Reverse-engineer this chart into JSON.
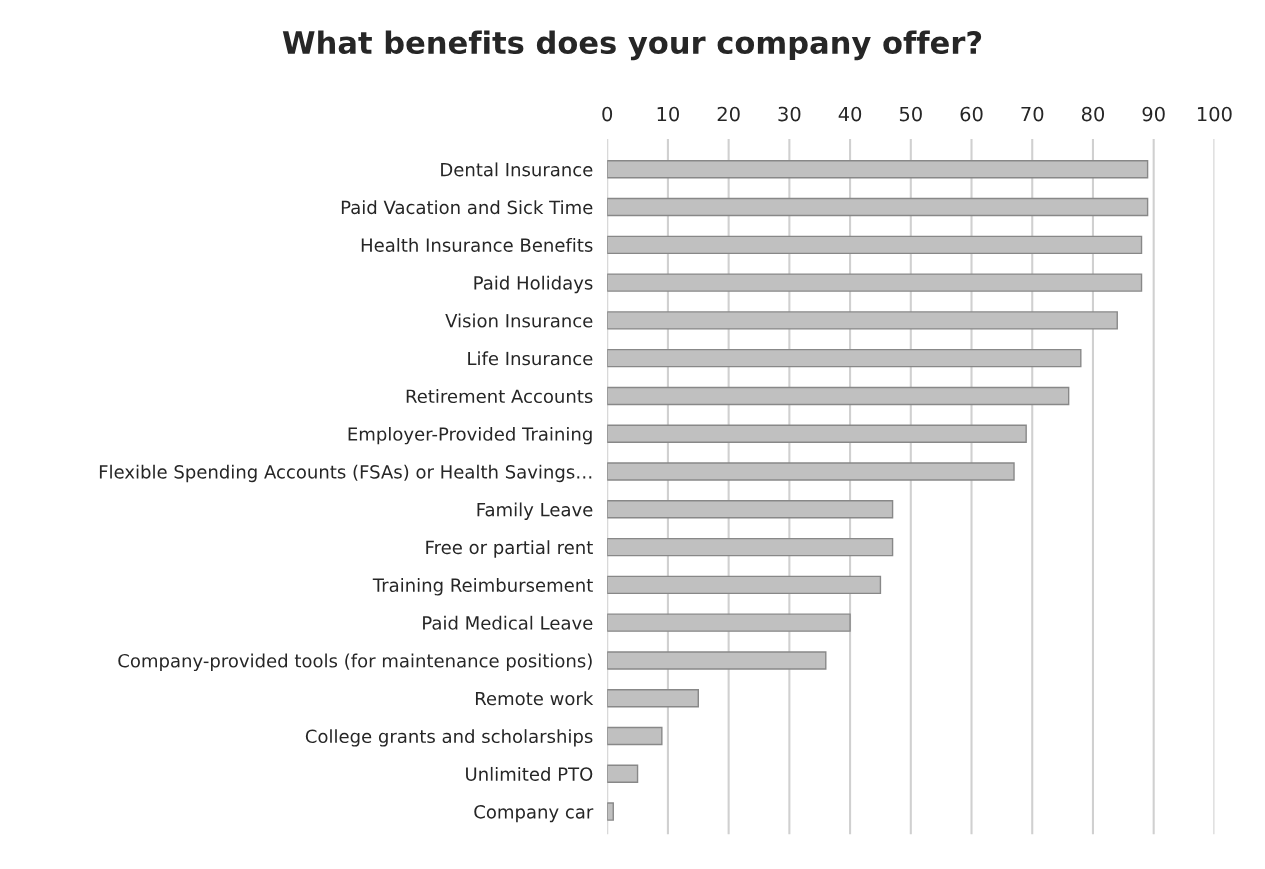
{
  "chart_data": {
    "type": "bar",
    "orientation": "horizontal",
    "title": "What benefits does your company offer?",
    "categories": [
      "Dental Insurance",
      "Paid Vacation and Sick Time",
      "Health Insurance Benefits",
      "Paid Holidays",
      "Vision Insurance",
      "Life Insurance",
      "Retirement Accounts",
      "Employer-Provided Training",
      "Flexible Spending Accounts (FSAs) or Health Savings…",
      "Family Leave",
      "Free or partial rent",
      "Training Reimbursement",
      "Paid Medical Leave",
      "Company-provided tools (for maintenance positions)",
      "Remote work",
      "College grants and scholarships",
      "Unlimited PTO",
      "Company car"
    ],
    "values": [
      89,
      89,
      88,
      88,
      84,
      78,
      76,
      69,
      67,
      47,
      47,
      45,
      40,
      36,
      15,
      9,
      5,
      1
    ],
    "color": "#c0c0c0",
    "xlim": [
      0,
      100
    ],
    "xticks": [
      0,
      10,
      20,
      30,
      40,
      50,
      60,
      70,
      80,
      90,
      100
    ],
    "grid": "x",
    "legend": false
  }
}
